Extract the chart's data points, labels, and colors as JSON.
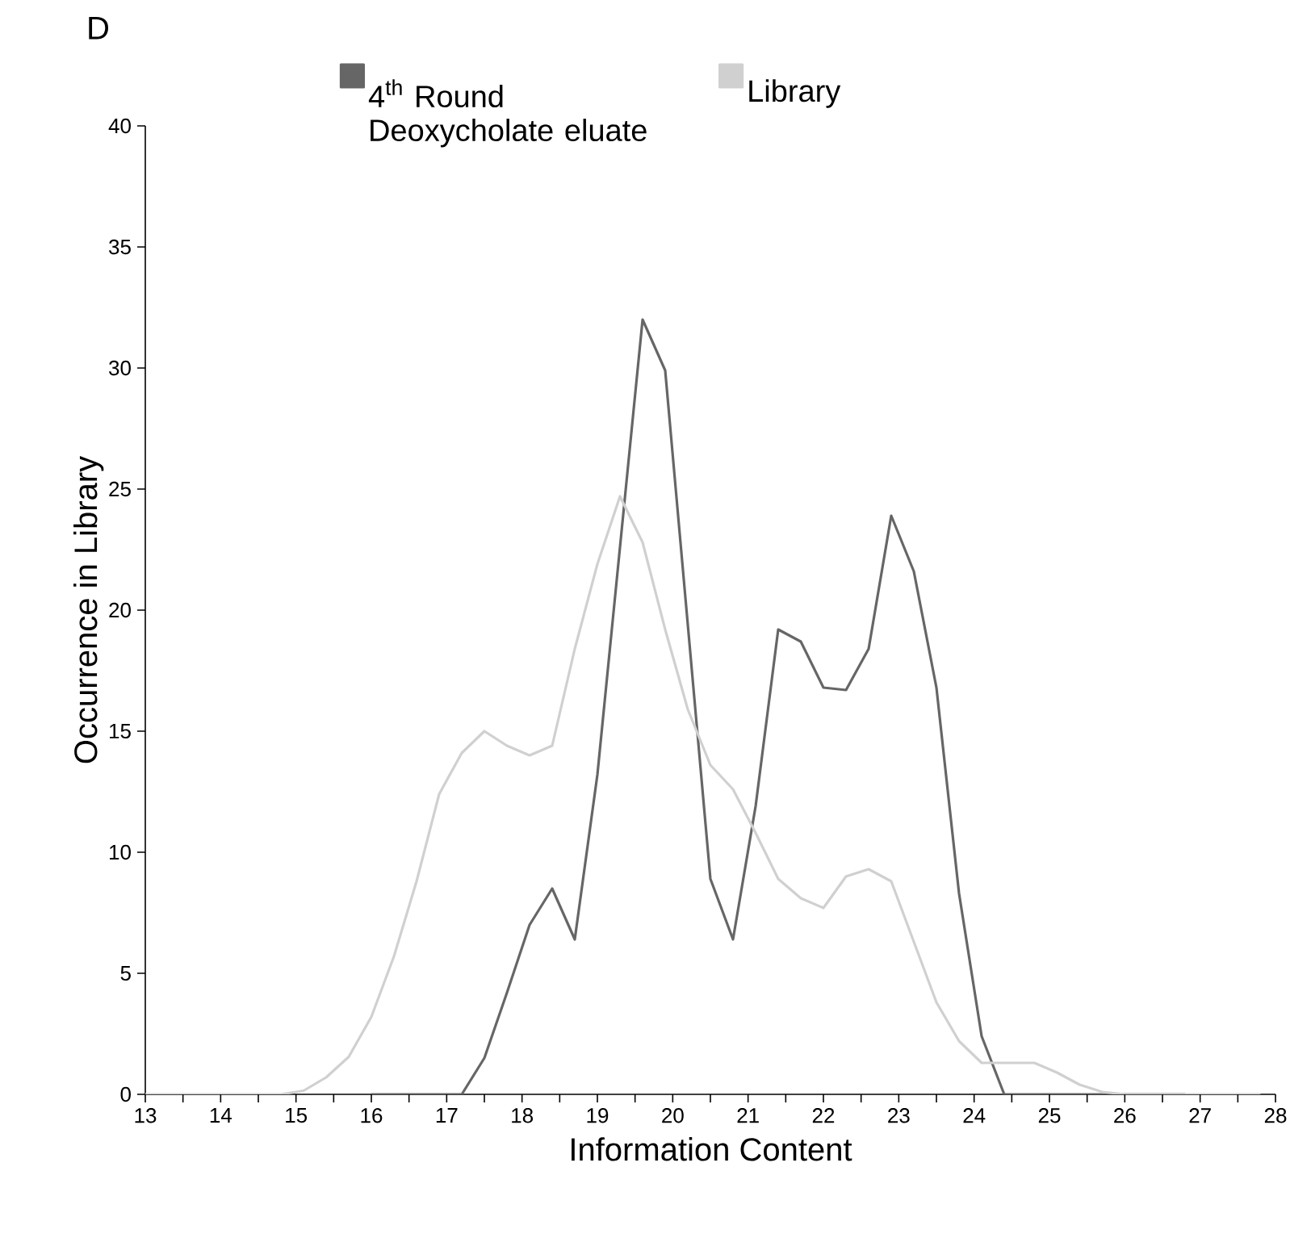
{
  "chart_data": {
    "type": "line",
    "xlabel": "Information Content",
    "ylabel": "Occurrence in Library",
    "annotations": [
      "D"
    ],
    "xlim": [
      13,
      28
    ],
    "ylim": [
      0,
      40
    ],
    "xticks": [
      13,
      14,
      15,
      16,
      17,
      18,
      19,
      20,
      21,
      22,
      23,
      24,
      25,
      26,
      27,
      28
    ],
    "yticks": [
      0,
      5,
      10,
      15,
      20,
      25,
      30,
      35,
      40
    ],
    "grid": false,
    "legend": "top",
    "marker": "none",
    "line_style": "solid",
    "series": [
      {
        "name": "4$^{th}$ Round Deoxycholate eluate",
        "color": "#666666",
        "x": [
          16,
          17.2,
          17.5,
          17.8,
          18.1,
          18.4,
          18.7,
          19.0,
          19.6,
          19.9,
          20.5,
          20.8,
          21.1,
          21.4,
          21.7,
          22.0,
          22.3,
          22.6,
          22.9,
          23.2,
          23.5,
          23.8,
          24.1,
          24.4,
          26.8
        ],
        "values": [
          0,
          0,
          1.5,
          4.2,
          7.0,
          8.5,
          6.4,
          13.2,
          32,
          29.9,
          8.9,
          6.4,
          11.9,
          19.2,
          18.7,
          16.8,
          16.7,
          18.4,
          23.9,
          21.6,
          16.8,
          8.3,
          2.4,
          0,
          0
        ]
      },
      {
        "name": "Library",
        "color": "#d0d0d0",
        "x": [
          13,
          14.8,
          15.1,
          15.4,
          15.7,
          16.0,
          16.3,
          16.6,
          16.9,
          17.2,
          17.5,
          17.8,
          18.1,
          18.4,
          18.7,
          19.0,
          19.3,
          19.6,
          19.9,
          20.2,
          20.5,
          20.8,
          21.1,
          21.4,
          21.7,
          22.0,
          22.3,
          22.6,
          22.9,
          23.2,
          23.5,
          23.8,
          24.1,
          24.8,
          25.1,
          25.4,
          25.7,
          26.0,
          27.8
        ],
        "values": [
          0,
          0,
          0.15,
          0.7,
          1.55,
          3.2,
          5.7,
          8.8,
          12.4,
          14.1,
          15.0,
          14.4,
          14.0,
          14.4,
          18.4,
          21.9,
          24.7,
          22.8,
          19.2,
          15.9,
          13.6,
          12.6,
          10.8,
          8.9,
          8.1,
          7.7,
          9.0,
          9.3,
          8.8,
          6.3,
          3.8,
          2.2,
          1.3,
          1.3,
          0.9,
          0.4,
          0.1,
          0,
          0
        ]
      }
    ]
  }
}
